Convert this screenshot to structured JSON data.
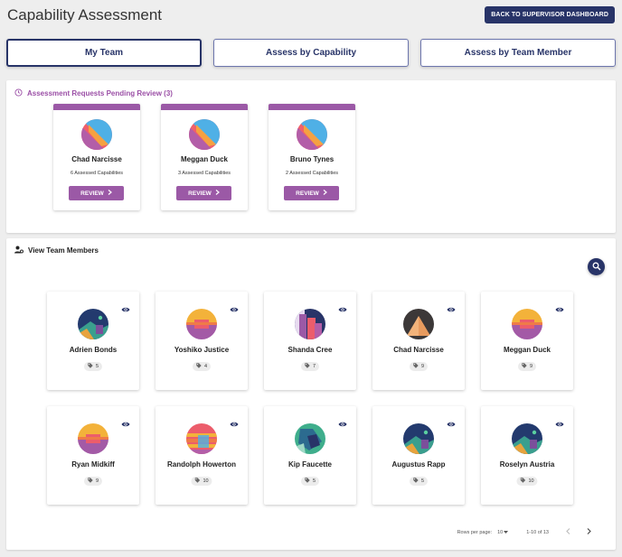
{
  "header": {
    "title": "Capability Assessment",
    "back_button": "BACK TO SUPERVISOR DASHBOARD"
  },
  "tabs": [
    {
      "label": "My Team",
      "active": true
    },
    {
      "label": "Assess by Capability",
      "active": false
    },
    {
      "label": "Assess by Team Member",
      "active": false
    }
  ],
  "pending": {
    "title": "Assessment Requests Pending Review (3)",
    "review_label": "REVIEW",
    "cards": [
      {
        "name": "Chad Narcisse",
        "caps": "6 Assessed Capabilities"
      },
      {
        "name": "Meggan Duck",
        "caps": "3 Assessed Capabilities"
      },
      {
        "name": "Bruno Tynes",
        "caps": "2 Assessed Capabilities"
      }
    ]
  },
  "team": {
    "title": "View Team Members",
    "members": [
      {
        "name": "Adrien Bonds",
        "count": "5",
        "avatar": "navy"
      },
      {
        "name": "Yoshiko Justice",
        "count": "4",
        "avatar": "sunset"
      },
      {
        "name": "Shanda Cree",
        "count": "7",
        "avatar": "city"
      },
      {
        "name": "Chad Narcisse",
        "count": "9",
        "avatar": "pyramid"
      },
      {
        "name": "Meggan Duck",
        "count": "9",
        "avatar": "sunset"
      },
      {
        "name": "Ryan Midkiff",
        "count": "9",
        "avatar": "sunset"
      },
      {
        "name": "Randolph Howerton",
        "count": "10",
        "avatar": "stripes"
      },
      {
        "name": "Kip Faucette",
        "count": "5",
        "avatar": "teal"
      },
      {
        "name": "Augustus Rapp",
        "count": "5",
        "avatar": "navy"
      },
      {
        "name": "Roselyn Austria",
        "count": "10",
        "avatar": "navy"
      }
    ]
  },
  "pagination": {
    "rows_label": "Rows per page:",
    "rows_value": "10",
    "range": "1-10 of 13"
  },
  "colors": {
    "navy": "#283468",
    "purple": "#9b59a6",
    "background": "#eeeeee"
  }
}
